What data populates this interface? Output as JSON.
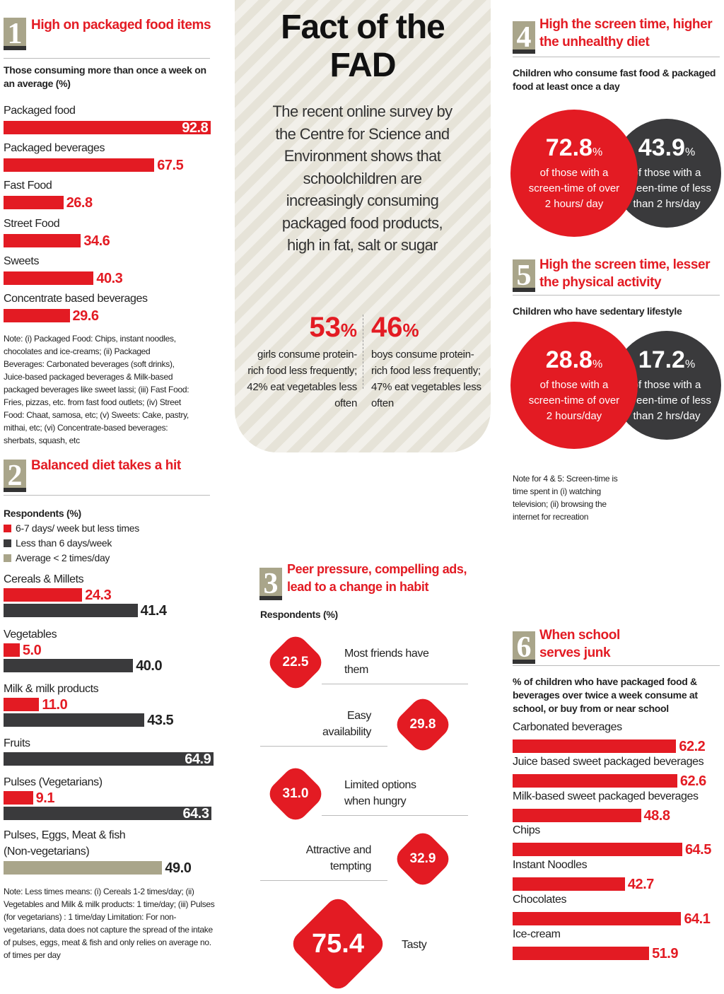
{
  "colors": {
    "red": "#e31b23",
    "dark": "#3a3a3c",
    "olive": "#a9a58a"
  },
  "center": {
    "title_line1": "Fact of the",
    "title_line2": "FAD",
    "intro": "The recent online survey by the Centre for Science and Environment shows that schoolchildren are increasingly consuming packaged food products, high in fat, salt or sugar",
    "stats": [
      {
        "value": "53",
        "unit": "%",
        "text": "girls consume protein-rich food less frequently; 42% eat vegetables less often"
      },
      {
        "value": "46",
        "unit": "%",
        "text": "boys consume protein-rich food less frequently; 47% eat vegetables less often"
      }
    ]
  },
  "section4": {
    "number": "4",
    "title": "High the screen time, higher the unhealthy diet",
    "subtitle": "Children who consume fast food & packaged food at least once a day",
    "circles": [
      {
        "value": "72.8",
        "unit": "%",
        "text": "of those with a screen-time of over 2 hours/ day",
        "color": "red"
      },
      {
        "value": "43.9",
        "unit": "%",
        "text": "of those with a screen-time of less than 2 hrs/day",
        "color": "dark"
      }
    ]
  },
  "section5": {
    "number": "5",
    "title": "High the screen time, lesser the physical activity",
    "subtitle": "Children who have sedentary lifestyle",
    "circles": [
      {
        "value": "28.8",
        "unit": "%",
        "text": "of those with a screen-time of over 2 hours/day",
        "color": "red"
      },
      {
        "value": "17.2",
        "unit": "%",
        "text": "of those with a screen-time of less than 2 hrs/day",
        "color": "dark"
      }
    ],
    "note": "Note for 4 & 5: Screen-time is time spent in (i) watching television; (ii) browsing the internet for recreation"
  },
  "chart_data": [
    {
      "type": "bar",
      "orientation": "horizontal",
      "number": "1",
      "title": "High on packaged food items",
      "subtitle": "Those consuming more than once a week on an average (%)",
      "categories": [
        "Packaged food",
        "Packaged beverages",
        "Fast Food",
        "Street Food",
        "Sweets",
        "Concentrate based beverages"
      ],
      "values": [
        92.8,
        67.5,
        26.8,
        34.6,
        40.3,
        29.6
      ],
      "color": "#e31b23",
      "note": "Note: (i) Packaged Food: Chips, instant noodles, chocolates and ice-creams; (ii) Packaged Beverages: Carbonated beverages (soft drinks), Juice-based packaged beverages & Milk-based packaged beverages like sweet lassi; (iii) Fast Food: Fries, pizzas, etc. from fast food outlets; (iv) Street Food: Chaat, samosa, etc; (v) Sweets: Cake, pastry, mithai, etc; (vi) Concentrate-based beverages: sherbats, squash, etc"
    },
    {
      "type": "bar",
      "orientation": "horizontal",
      "number": "2",
      "title": "Balanced diet takes a hit",
      "subtitle": "Respondents (%)",
      "legend": [
        {
          "name": "6-7 days/ week but less times",
          "color": "#e31b23"
        },
        {
          "name": "Less than 6 days/week",
          "color": "#3a3a3c"
        },
        {
          "name": "Average < 2 times/day",
          "color": "#a9a58a"
        }
      ],
      "categories": [
        "Cereals & Millets",
        "Vegetables",
        "Milk & milk products",
        "Fruits",
        "Pulses (Vegetarians)",
        "Pulses, Eggs, Meat & fish (Non-vegetarians)"
      ],
      "rows": [
        [
          {
            "series": 0,
            "value": 24.3
          },
          {
            "series": 1,
            "value": 41.4
          }
        ],
        [
          {
            "series": 0,
            "value": 5.0
          },
          {
            "series": 1,
            "value": 40.0
          }
        ],
        [
          {
            "series": 0,
            "value": 11.0
          },
          {
            "series": 1,
            "value": 43.5
          }
        ],
        [
          {
            "series": 1,
            "value": 64.9
          }
        ],
        [
          {
            "series": 0,
            "value": 9.1
          },
          {
            "series": 1,
            "value": 64.3
          }
        ],
        [
          {
            "series": 2,
            "value": 49.0
          }
        ]
      ],
      "note": "Note: Less times means: (i) Cereals 1-2 times/day; (ii) Vegetables and Milk & milk products: 1 time/day; (iii) Pulses (for vegetarians) : 1 time/day Limitation: For non-vegetarians, data does not capture the spread of the intake of pulses, eggs, meat & fish and only relies on average no. of times per day"
    },
    {
      "type": "bar",
      "number": "3",
      "title": "Peer pressure, compelling ads, lead to a change in habit",
      "subtitle": "Respondents (%)",
      "categories": [
        "Most friends have them",
        "Easy availability",
        "Limited options when hungry",
        "Attractive and tempting",
        "Tasty"
      ],
      "values": [
        22.5,
        29.8,
        31.0,
        32.9,
        75.4
      ],
      "color": "#e31b23"
    },
    {
      "type": "bar",
      "orientation": "horizontal",
      "number": "6",
      "title": "When school serves junk",
      "subtitle": "% of children who have packaged food & beverages over twice a week consume at school, or buy from or near school",
      "categories": [
        "Carbonated beverages",
        "Juice based sweet packaged beverages",
        "Milk-based sweet packaged beverages",
        "Chips",
        "Instant Noodles",
        "Chocolates",
        "Ice-cream"
      ],
      "values": [
        62.2,
        62.6,
        48.8,
        64.5,
        42.7,
        64.1,
        51.9
      ],
      "color": "#e31b23"
    }
  ]
}
